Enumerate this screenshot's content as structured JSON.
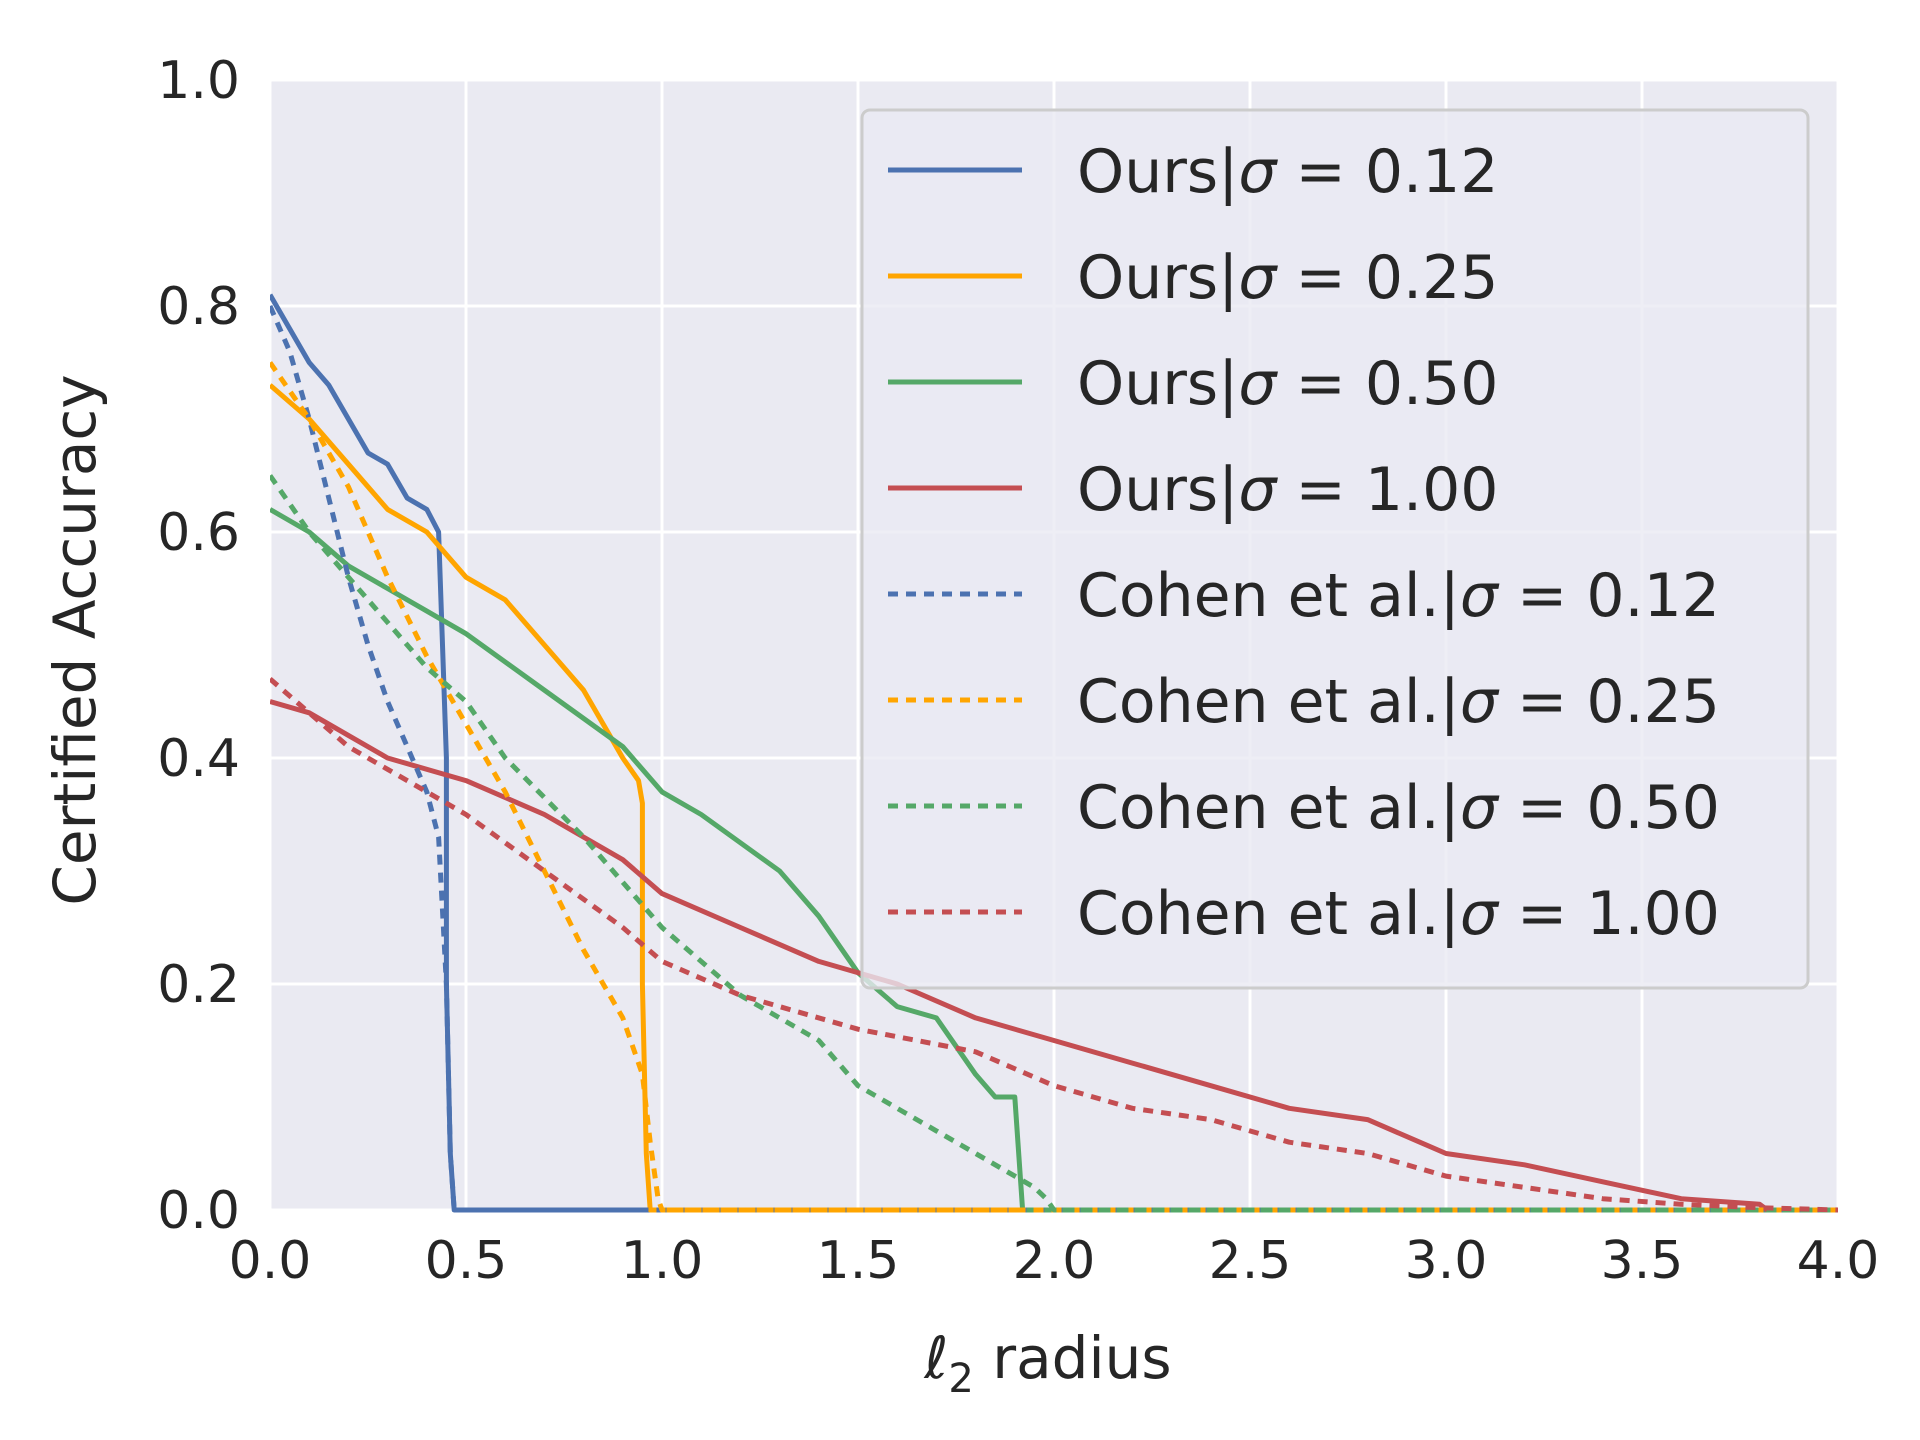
{
  "chart_data": {
    "type": "line",
    "title": "",
    "xlabel_main": "ℓ",
    "xlabel_sub": "2",
    "xlabel_rest": " radius",
    "ylabel": "Certified Accuracy",
    "xlim": [
      0.0,
      4.0
    ],
    "ylim": [
      0.0,
      1.0
    ],
    "xticks": [
      0.0,
      0.5,
      1.0,
      1.5,
      2.0,
      2.5,
      3.0,
      3.5,
      4.0
    ],
    "xtick_labels": [
      "0.0",
      "0.5",
      "1.0",
      "1.5",
      "2.0",
      "2.5",
      "3.0",
      "3.5",
      "4.0"
    ],
    "yticks": [
      0.0,
      0.2,
      0.4,
      0.6,
      0.8,
      1.0
    ],
    "ytick_labels": [
      "0.0",
      "0.2",
      "0.4",
      "0.6",
      "0.8",
      "1.0"
    ],
    "grid": true,
    "legend_position": "top-right",
    "series": [
      {
        "legend_prefix": "Ours|",
        "sigma_value": "0.12",
        "color": "#4C72B0",
        "dash": "solid",
        "x": [
          0.0,
          0.05,
          0.1,
          0.15,
          0.2,
          0.25,
          0.3,
          0.35,
          0.4,
          0.43,
          0.45,
          0.45,
          0.46,
          0.47,
          4.0
        ],
        "y": [
          0.81,
          0.78,
          0.75,
          0.73,
          0.7,
          0.67,
          0.66,
          0.63,
          0.62,
          0.6,
          0.4,
          0.2,
          0.05,
          0.0,
          0.0
        ]
      },
      {
        "legend_prefix": "Ours|",
        "sigma_value": "0.25",
        "color": "#FFA500",
        "dash": "solid",
        "x": [
          0.0,
          0.1,
          0.2,
          0.3,
          0.4,
          0.5,
          0.6,
          0.7,
          0.8,
          0.85,
          0.9,
          0.94,
          0.95,
          0.95,
          0.96,
          0.97,
          4.0
        ],
        "y": [
          0.73,
          0.7,
          0.66,
          0.62,
          0.6,
          0.56,
          0.54,
          0.5,
          0.46,
          0.43,
          0.4,
          0.38,
          0.36,
          0.2,
          0.05,
          0.0,
          0.0
        ]
      },
      {
        "legend_prefix": "Ours|",
        "sigma_value": "0.50",
        "color": "#55A868",
        "dash": "solid",
        "x": [
          0.0,
          0.1,
          0.2,
          0.3,
          0.4,
          0.5,
          0.7,
          0.9,
          1.0,
          1.1,
          1.3,
          1.4,
          1.5,
          1.6,
          1.7,
          1.8,
          1.85,
          1.9,
          1.91,
          1.92,
          4.0
        ],
        "y": [
          0.62,
          0.6,
          0.57,
          0.55,
          0.53,
          0.51,
          0.46,
          0.41,
          0.37,
          0.35,
          0.3,
          0.26,
          0.21,
          0.18,
          0.17,
          0.12,
          0.1,
          0.1,
          0.05,
          0.0,
          0.0
        ]
      },
      {
        "legend_prefix": "Ours|",
        "sigma_value": "1.00",
        "color": "#C44E52",
        "dash": "solid",
        "x": [
          0.0,
          0.1,
          0.2,
          0.3,
          0.5,
          0.7,
          0.9,
          1.0,
          1.2,
          1.4,
          1.6,
          1.8,
          2.0,
          2.2,
          2.4,
          2.6,
          2.8,
          3.0,
          3.2,
          3.4,
          3.6,
          3.8,
          3.82
        ],
        "y": [
          0.45,
          0.44,
          0.42,
          0.4,
          0.38,
          0.35,
          0.31,
          0.28,
          0.25,
          0.22,
          0.2,
          0.17,
          0.15,
          0.13,
          0.11,
          0.09,
          0.08,
          0.05,
          0.04,
          0.025,
          0.01,
          0.005,
          0.0
        ]
      },
      {
        "legend_prefix": "Cohen et al.|",
        "sigma_value": "0.12",
        "color": "#4C72B0",
        "dash": "dotted",
        "x": [
          0.0,
          0.05,
          0.1,
          0.15,
          0.2,
          0.25,
          0.3,
          0.35,
          0.4,
          0.43,
          0.45,
          0.46,
          0.47,
          4.0
        ],
        "y": [
          0.8,
          0.76,
          0.7,
          0.63,
          0.56,
          0.5,
          0.45,
          0.41,
          0.37,
          0.33,
          0.2,
          0.05,
          0.0,
          0.0
        ]
      },
      {
        "legend_prefix": "Cohen et al.|",
        "sigma_value": "0.25",
        "color": "#FFA500",
        "dash": "dotted",
        "x": [
          0.0,
          0.1,
          0.2,
          0.3,
          0.4,
          0.5,
          0.6,
          0.7,
          0.8,
          0.9,
          0.95,
          0.97,
          0.99,
          1.0,
          4.0
        ],
        "y": [
          0.75,
          0.7,
          0.64,
          0.56,
          0.49,
          0.43,
          0.37,
          0.3,
          0.23,
          0.17,
          0.12,
          0.06,
          0.01,
          0.0,
          0.0
        ]
      },
      {
        "legend_prefix": "Cohen et al.|",
        "sigma_value": "0.50",
        "color": "#55A868",
        "dash": "dotted",
        "x": [
          0.0,
          0.1,
          0.2,
          0.3,
          0.4,
          0.5,
          0.6,
          0.8,
          1.0,
          1.2,
          1.4,
          1.5,
          1.6,
          1.7,
          1.8,
          1.9,
          1.95,
          1.98,
          2.0,
          4.0
        ],
        "y": [
          0.65,
          0.6,
          0.56,
          0.52,
          0.48,
          0.45,
          0.4,
          0.33,
          0.25,
          0.19,
          0.15,
          0.11,
          0.09,
          0.07,
          0.05,
          0.03,
          0.02,
          0.01,
          0.0,
          0.0
        ]
      },
      {
        "legend_prefix": "Cohen et al.|",
        "sigma_value": "1.00",
        "color": "#C44E52",
        "dash": "dotted",
        "x": [
          0.0,
          0.1,
          0.2,
          0.3,
          0.5,
          0.7,
          0.9,
          1.0,
          1.2,
          1.5,
          1.8,
          2.0,
          2.2,
          2.4,
          2.6,
          2.8,
          3.0,
          3.2,
          3.4,
          3.6,
          3.8,
          4.0
        ],
        "y": [
          0.47,
          0.44,
          0.41,
          0.39,
          0.35,
          0.3,
          0.25,
          0.22,
          0.19,
          0.16,
          0.14,
          0.11,
          0.09,
          0.08,
          0.06,
          0.05,
          0.03,
          0.02,
          0.01,
          0.005,
          0.002,
          0.0
        ]
      }
    ]
  }
}
